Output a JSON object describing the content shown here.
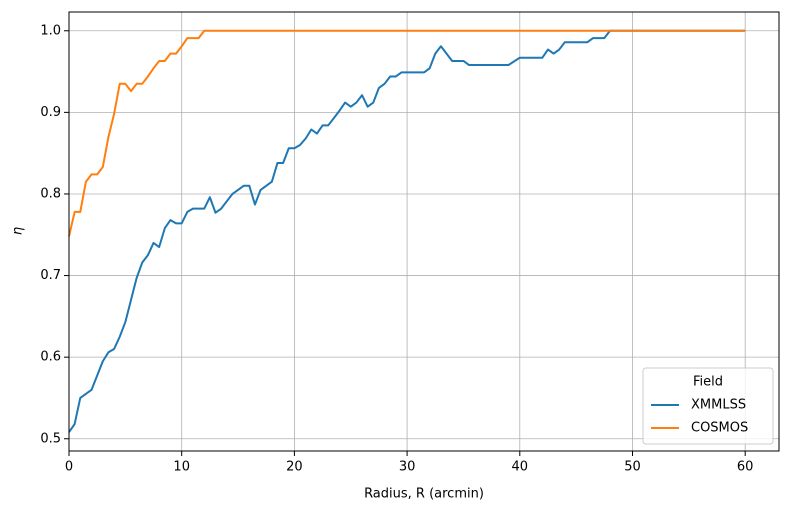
{
  "chart_data": {
    "type": "line",
    "xlabel": "Radius, R (arcmin)",
    "ylabel": "η",
    "xlim": [
      0,
      63
    ],
    "ylim": [
      0.485,
      1.023
    ],
    "xticks": [
      0,
      10,
      20,
      30,
      40,
      50,
      60
    ],
    "yticks": [
      0.5,
      0.6,
      0.7,
      0.8,
      0.9,
      {
        "value": 1,
        "label": "1.0"
      }
    ],
    "grid": true,
    "legend_title": "Field",
    "legend_position": "lower right",
    "series": [
      {
        "name": "XMMLSS",
        "color": "#1f77b4",
        "x": [
          0,
          0.5,
          1,
          2,
          3,
          3.5,
          4,
          4.5,
          5,
          5.5,
          6,
          6.5,
          7,
          7.5,
          8,
          8.5,
          9,
          9.5,
          10,
          10.5,
          11,
          12,
          12.5,
          13,
          13.5,
          14,
          14.5,
          15,
          15.5,
          16,
          16.5,
          17,
          18,
          18.5,
          19,
          19.5,
          20,
          20.5,
          21,
          21.5,
          22,
          22.5,
          23,
          24,
          24.5,
          25,
          25.5,
          26,
          26.5,
          27,
          27.5,
          28,
          28.5,
          29,
          29.5,
          31,
          31.5,
          32,
          32.5,
          33,
          33.5,
          34,
          35,
          35.5,
          39,
          40,
          42,
          42.5,
          43,
          43.5,
          44,
          46,
          46.5,
          47.5,
          48,
          60
        ],
        "values": [
          0.508,
          0.518,
          0.55,
          0.56,
          0.595,
          0.606,
          0.61,
          0.625,
          0.643,
          0.67,
          0.697,
          0.716,
          0.725,
          0.74,
          0.735,
          0.758,
          0.768,
          0.764,
          0.764,
          0.778,
          0.782,
          0.782,
          0.796,
          0.777,
          0.782,
          0.791,
          0.8,
          0.805,
          0.81,
          0.81,
          0.787,
          0.805,
          0.815,
          0.838,
          0.838,
          0.856,
          0.856,
          0.86,
          0.868,
          0.879,
          0.874,
          0.884,
          0.884,
          0.902,
          0.912,
          0.907,
          0.912,
          0.921,
          0.907,
          0.912,
          0.93,
          0.935,
          0.944,
          0.944,
          0.949,
          0.949,
          0.949,
          0.954,
          0.972,
          0.981,
          0.972,
          0.963,
          0.963,
          0.958,
          0.958,
          0.967,
          0.967,
          0.977,
          0.972,
          0.977,
          0.986,
          0.986,
          0.991,
          0.991,
          1.0,
          1.0
        ]
      },
      {
        "name": "COSMOS",
        "color": "#ff7f0e",
        "x": [
          0,
          0.5,
          1,
          1.5,
          2,
          2.5,
          3,
          3.5,
          4,
          4.5,
          5,
          5.5,
          6,
          6.5,
          7,
          7.5,
          8,
          8.5,
          9,
          9.5,
          10,
          10.5,
          11.5,
          12,
          60
        ],
        "values": [
          0.748,
          0.778,
          0.778,
          0.815,
          0.824,
          0.824,
          0.833,
          0.87,
          0.898,
          0.935,
          0.935,
          0.926,
          0.935,
          0.935,
          0.944,
          0.954,
          0.963,
          0.963,
          0.972,
          0.972,
          0.981,
          0.991,
          0.991,
          1.0,
          1.0
        ]
      }
    ]
  }
}
